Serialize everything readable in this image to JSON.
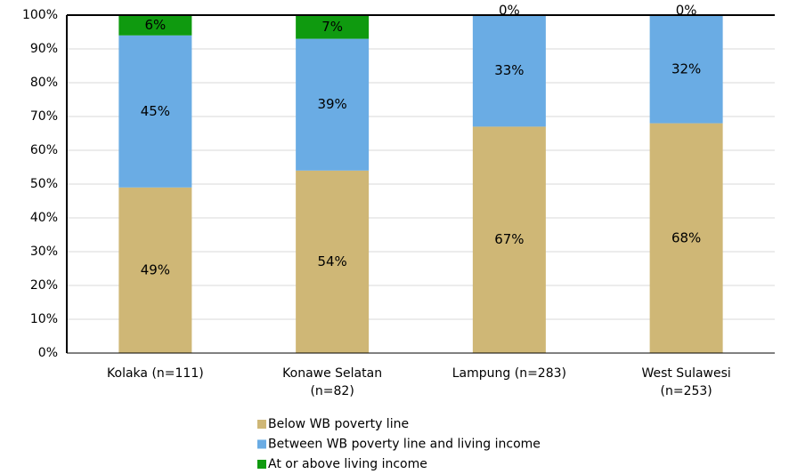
{
  "chart_data": {
    "type": "stacked_bar",
    "categories": [
      "Kolaka  (n=111)",
      "Konawe Selatan (n=82)",
      "Lampung (n=283)",
      "West Sulawesi (n=253)"
    ],
    "series": [
      {
        "name": "Below WB poverty line",
        "color": "#cfb776",
        "values": [
          49,
          54,
          67,
          68
        ],
        "value_labels": [
          "49%",
          "54%",
          "67%",
          "68%"
        ]
      },
      {
        "name": "Between WB poverty line and living income",
        "color": "#6aace4",
        "values": [
          45,
          39,
          33,
          32
        ],
        "value_labels": [
          "45%",
          "39%",
          "33%",
          "32%"
        ]
      },
      {
        "name": "At or above living income",
        "color": "#0f9a0f",
        "values": [
          6,
          7,
          0,
          0
        ],
        "value_labels": [
          "6%",
          "7%",
          "0%",
          "0%"
        ]
      }
    ],
    "ylim": [
      0,
      100
    ],
    "yticks": [
      {
        "value": 0,
        "label": "0%"
      },
      {
        "value": 10,
        "label": "10%"
      },
      {
        "value": 20,
        "label": "20%"
      },
      {
        "value": 30,
        "label": "30%"
      },
      {
        "value": 40,
        "label": "40%"
      },
      {
        "value": 50,
        "label": "50%"
      },
      {
        "value": 60,
        "label": "60%"
      },
      {
        "value": 70,
        "label": "70%"
      },
      {
        "value": 80,
        "label": "80%"
      },
      {
        "value": 90,
        "label": "90%"
      },
      {
        "value": 100,
        "label": "100%"
      }
    ],
    "grid": true,
    "legend": "bottom"
  }
}
